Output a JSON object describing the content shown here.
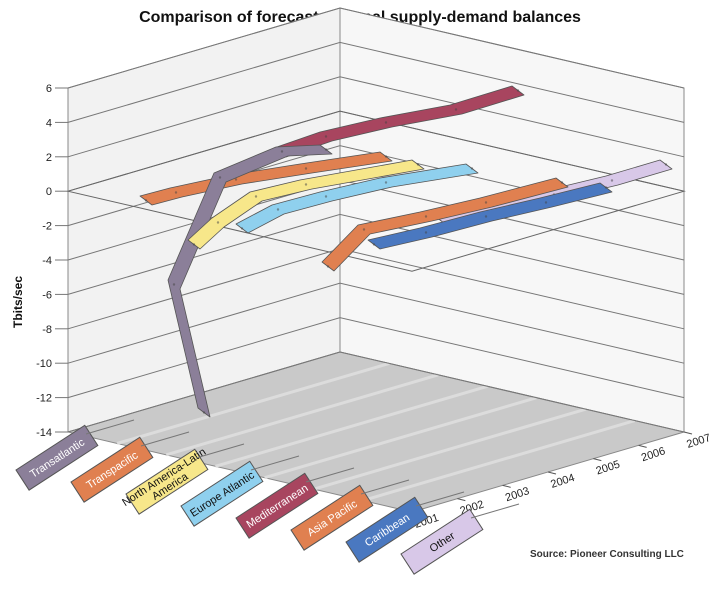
{
  "chart_data": {
    "type": "line",
    "title": "Comparison of forecast regional supply-demand balances",
    "ylabel": "Tbits/sec",
    "xlabel": "",
    "ylim": [
      -14,
      6
    ],
    "y_ticks": [
      "6",
      "4",
      "2",
      "0",
      "-2",
      "-4",
      "-6",
      "-8",
      "-10",
      "-12",
      "-14"
    ],
    "x": [
      "2001",
      "2002",
      "2003",
      "2004",
      "2005",
      "2006",
      "2007"
    ],
    "grid": true,
    "source": "Source: Pioneer Consulting LLC",
    "series": [
      {
        "name": "Transatlantic",
        "color": "#8b7f99",
        "values": [
          1.9,
          2.2,
          2.6,
          3.4,
          3.8,
          -1.9,
          -12.6
        ]
      },
      {
        "name": "Transpacific",
        "color": "#e08050",
        "values": [
          -0.2,
          0.0,
          0.2,
          0.4,
          0.6,
          0.8,
          1.0
        ]
      },
      {
        "name": "North America-Latin America",
        "color": "#f7e78a",
        "values": [
          -0.4,
          -0.2,
          0.0,
          0.2,
          0.4,
          0.6,
          0.8
        ]
      },
      {
        "name": "Europe Atlantic",
        "color": "#8fd0ee",
        "values": [
          -0.6,
          -0.4,
          -0.2,
          0.0,
          0.2,
          0.4,
          0.6
        ]
      },
      {
        "name": "Mediterranean",
        "color": "#a8455f",
        "values": [
          5.0,
          4.0,
          3.0,
          2.0,
          1.0,
          0.0,
          -1.0
        ]
      },
      {
        "name": "Asia Pacific",
        "color": "#e08050",
        "values": [
          -0.5,
          -0.6,
          -0.8,
          -1.0,
          -1.2,
          -1.4,
          -4.2
        ]
      },
      {
        "name": "Caribbean",
        "color": "#4a78c0",
        "values": [
          -0.3,
          -0.5,
          -0.7,
          -0.9,
          -1.1,
          -1.3,
          -1.5
        ]
      },
      {
        "name": "Other",
        "color": "#d8c8e8",
        "values": [
          1.5,
          1.2,
          0.9,
          0.6,
          0.3,
          0.0,
          -0.3
        ]
      }
    ]
  }
}
